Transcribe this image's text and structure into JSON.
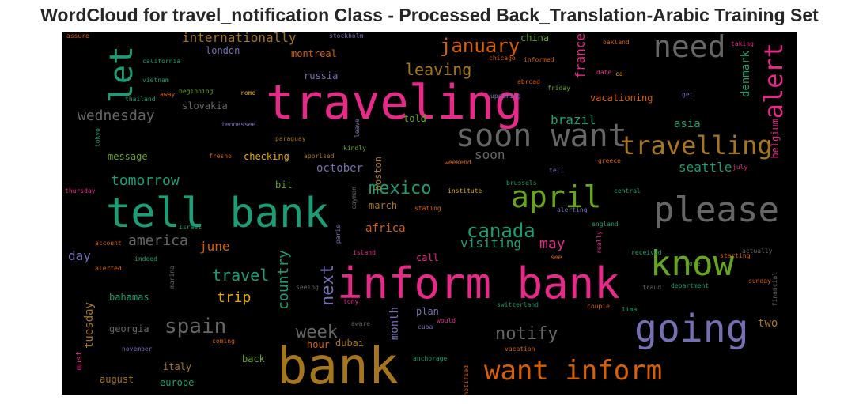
{
  "title": "WordCloud for travel_notification Class - Processed Back_Translation-Arabic Training Set",
  "colors": {
    "pink": "#e7298a",
    "green": "#1b9e77",
    "orange": "#d95f02",
    "gold": "#a6761d",
    "lime": "#66a61e",
    "purple": "#7570b3",
    "gray": "#666666",
    "yellow": "#e6ab02"
  },
  "words": [
    {
      "text": "traveling",
      "color": "pink"
    },
    {
      "text": "bank",
      "color": "gold"
    },
    {
      "text": "inform bank",
      "color": "pink"
    },
    {
      "text": "tell bank",
      "color": "green"
    },
    {
      "text": "soon want",
      "color": "gray"
    },
    {
      "text": "please",
      "color": "gray"
    },
    {
      "text": "going",
      "color": "purple"
    },
    {
      "text": "know",
      "color": "lime"
    },
    {
      "text": "need",
      "color": "gray"
    },
    {
      "text": "let",
      "color": "green"
    },
    {
      "text": "travelling",
      "color": "gold"
    },
    {
      "text": "april",
      "color": "lime"
    },
    {
      "text": "want inform",
      "color": "orange"
    },
    {
      "text": "alert",
      "color": "pink"
    },
    {
      "text": "spain",
      "color": "gray"
    },
    {
      "text": "canada",
      "color": "green"
    },
    {
      "text": "mexico",
      "color": "green"
    },
    {
      "text": "january",
      "color": "orange"
    },
    {
      "text": "next",
      "color": "purple"
    },
    {
      "text": "notify",
      "color": "gray"
    },
    {
      "text": "week",
      "color": "gray"
    },
    {
      "text": "leaving",
      "color": "gold"
    },
    {
      "text": "tomorrow",
      "color": "green"
    },
    {
      "text": "wednesday",
      "color": "gray"
    },
    {
      "text": "america",
      "color": "gray"
    },
    {
      "text": "travel",
      "color": "green"
    },
    {
      "text": "internationally",
      "color": "gold"
    },
    {
      "text": "country",
      "color": "green"
    },
    {
      "text": "trip",
      "color": "yellow"
    },
    {
      "text": "seattle",
      "color": "green"
    },
    {
      "text": "brazil",
      "color": "green"
    },
    {
      "text": "visiting",
      "color": "green"
    },
    {
      "text": "may",
      "color": "pink"
    },
    {
      "text": "june",
      "color": "orange"
    },
    {
      "text": "day",
      "color": "purple"
    },
    {
      "text": "france",
      "color": "pink"
    },
    {
      "text": "denmark",
      "color": "green"
    },
    {
      "text": "month",
      "color": "purple"
    },
    {
      "text": "tuesday",
      "color": "gold"
    },
    {
      "text": "october",
      "color": "purple"
    },
    {
      "text": "africa",
      "color": "orange"
    },
    {
      "text": "soon",
      "color": "gray"
    },
    {
      "text": "asia",
      "color": "green"
    },
    {
      "text": "two",
      "color": "gold"
    },
    {
      "text": "vacationing",
      "color": "orange"
    },
    {
      "text": "bahamas",
      "color": "green"
    },
    {
      "text": "georgia",
      "color": "gray"
    },
    {
      "text": "slovakia",
      "color": "gray"
    },
    {
      "text": "message",
      "color": "lime"
    },
    {
      "text": "checking",
      "color": "yellow"
    },
    {
      "text": "montreal",
      "color": "orange"
    },
    {
      "text": "london",
      "color": "purple"
    },
    {
      "text": "russia",
      "color": "purple"
    },
    {
      "text": "call",
      "color": "pink"
    },
    {
      "text": "plan",
      "color": "purple"
    },
    {
      "text": "italy",
      "color": "gold"
    },
    {
      "text": "europe",
      "color": "green"
    },
    {
      "text": "august",
      "color": "gold"
    },
    {
      "text": "march",
      "color": "gold"
    },
    {
      "text": "boston",
      "color": "gold"
    },
    {
      "text": "back",
      "color": "lime"
    },
    {
      "text": "dubai",
      "color": "gold"
    },
    {
      "text": "hour",
      "color": "orange"
    },
    {
      "text": "told",
      "color": "lime"
    },
    {
      "text": "china",
      "color": "lime"
    },
    {
      "text": "belgium",
      "color": "pink"
    },
    {
      "text": "bit",
      "color": "lime"
    },
    {
      "text": "must",
      "color": "pink"
    },
    {
      "text": "assure",
      "color": "orange"
    },
    {
      "text": "stockholm",
      "color": "purple"
    },
    {
      "text": "oakland",
      "color": "orange"
    },
    {
      "text": "taking",
      "color": "pink"
    },
    {
      "text": "california",
      "color": "green"
    },
    {
      "text": "chicago",
      "color": "orange"
    },
    {
      "text": "informed",
      "color": "orange"
    },
    {
      "text": "vietnam",
      "color": "green"
    },
    {
      "text": "date",
      "color": "pink"
    },
    {
      "text": "ca",
      "color": "yellow"
    },
    {
      "text": "beginning",
      "color": "lime"
    },
    {
      "text": "abroad",
      "color": "orange"
    },
    {
      "text": "friday",
      "color": "lime"
    },
    {
      "text": "thailand",
      "color": "green"
    },
    {
      "text": "away",
      "color": "orange"
    },
    {
      "text": "rome",
      "color": "yellow"
    },
    {
      "text": "upcoming",
      "color": "purple"
    },
    {
      "text": "get",
      "color": "purple"
    },
    {
      "text": "tennessee",
      "color": "purple"
    },
    {
      "text": "leave",
      "color": "purple"
    },
    {
      "text": "tokyo",
      "color": "green"
    },
    {
      "text": "paraguay",
      "color": "gold"
    },
    {
      "text": "kindly",
      "color": "lime"
    },
    {
      "text": "fresno",
      "color": "orange"
    },
    {
      "text": "apprised",
      "color": "gold"
    },
    {
      "text": "weekend",
      "color": "orange"
    },
    {
      "text": "tell",
      "color": "purple"
    },
    {
      "text": "greece",
      "color": "orange"
    },
    {
      "text": "july",
      "color": "pink"
    },
    {
      "text": "thursday",
      "color": "pink"
    },
    {
      "text": "cayman",
      "color": "gray"
    },
    {
      "text": "institute",
      "color": "yellow"
    },
    {
      "text": "brussels",
      "color": "green"
    },
    {
      "text": "central",
      "color": "green"
    },
    {
      "text": "alerting",
      "color": "purple"
    },
    {
      "text": "stating",
      "color": "orange"
    },
    {
      "text": "israel",
      "color": "green"
    },
    {
      "text": "paris",
      "color": "purple"
    },
    {
      "text": "england",
      "color": "green"
    },
    {
      "text": "account",
      "color": "orange"
    },
    {
      "text": "really",
      "color": "pink"
    },
    {
      "text": "received",
      "color": "green"
    },
    {
      "text": "indeed",
      "color": "green"
    },
    {
      "text": "note",
      "color": "lime"
    },
    {
      "text": "starting",
      "color": "orange"
    },
    {
      "text": "island",
      "color": "pink"
    },
    {
      "text": "alerted",
      "color": "orange"
    },
    {
      "text": "see",
      "color": "orange"
    },
    {
      "text": "actually",
      "color": "gray"
    },
    {
      "text": "marina",
      "color": "gray"
    },
    {
      "text": "financial",
      "color": "gray"
    },
    {
      "text": "seeing",
      "color": "gray"
    },
    {
      "text": "sunday",
      "color": "orange"
    },
    {
      "text": "fraud",
      "color": "gray"
    },
    {
      "text": "department",
      "color": "green"
    },
    {
      "text": "tony",
      "color": "pink"
    },
    {
      "text": "switzerland",
      "color": "green"
    },
    {
      "text": "couple",
      "color": "orange"
    },
    {
      "text": "lima",
      "color": "green"
    },
    {
      "text": "aware",
      "color": "gray"
    },
    {
      "text": "cuba",
      "color": "purple"
    },
    {
      "text": "would",
      "color": "pink"
    },
    {
      "text": "coming",
      "color": "orange"
    },
    {
      "text": "november",
      "color": "purple"
    },
    {
      "text": "vacation",
      "color": "orange"
    },
    {
      "text": "anchorage",
      "color": "green"
    },
    {
      "text": "notified",
      "color": "orange"
    }
  ]
}
